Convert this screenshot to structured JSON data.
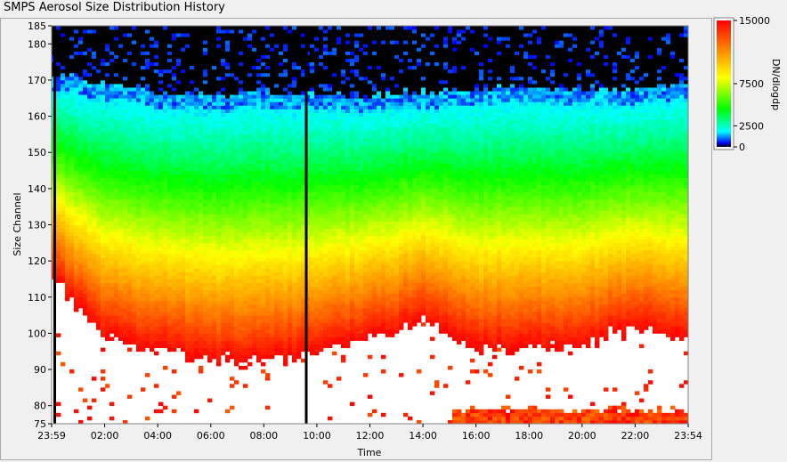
{
  "window": {
    "title": "SMPS Aerosol Size Distribution History"
  },
  "chart_data": {
    "type": "heatmap",
    "title": "SMPS Aerosol Size Distribution History",
    "xlabel": "Time",
    "ylabel": "Size Channel",
    "colorbar_label": "DN/dlogdp",
    "x_ticks": [
      "23:59",
      "02:00",
      "04:00",
      "06:00",
      "08:00",
      "10:00",
      "12:00",
      "14:00",
      "16:00",
      "18:00",
      "20:00",
      "22:00",
      "23:54"
    ],
    "x_range_hours": [
      -0.017,
      23.9
    ],
    "y_ticks": [
      75,
      80,
      90,
      100,
      110,
      120,
      130,
      140,
      150,
      160,
      170,
      180,
      185
    ],
    "ylim": [
      75,
      185
    ],
    "colorbar_ticks": [
      0,
      2500,
      7500,
      15000
    ],
    "colorbar_ticks_labels": [
      "0",
      "2500",
      "7500",
      "15000"
    ],
    "colorbar_range": [
      0,
      15000
    ],
    "grid": false,
    "description_series": [
      {
        "name": "dense-band-upper-edge",
        "x": [
          0,
          2,
          4,
          6,
          8,
          10,
          12,
          14,
          16,
          18,
          20,
          22,
          23.9
        ],
        "y": [
          168,
          165,
          163,
          162,
          163,
          162,
          162,
          163,
          164,
          164,
          164,
          164,
          165
        ]
      },
      {
        "name": "high-concentration-upper-edge",
        "x": [
          0,
          2,
          4,
          6,
          8,
          10,
          12,
          14,
          16,
          18,
          20,
          22,
          23.9
        ],
        "y": [
          120,
          103,
          100,
          97,
          97,
          100,
          103,
          108,
          100,
          101,
          101,
          107,
          103
        ]
      }
    ]
  }
}
